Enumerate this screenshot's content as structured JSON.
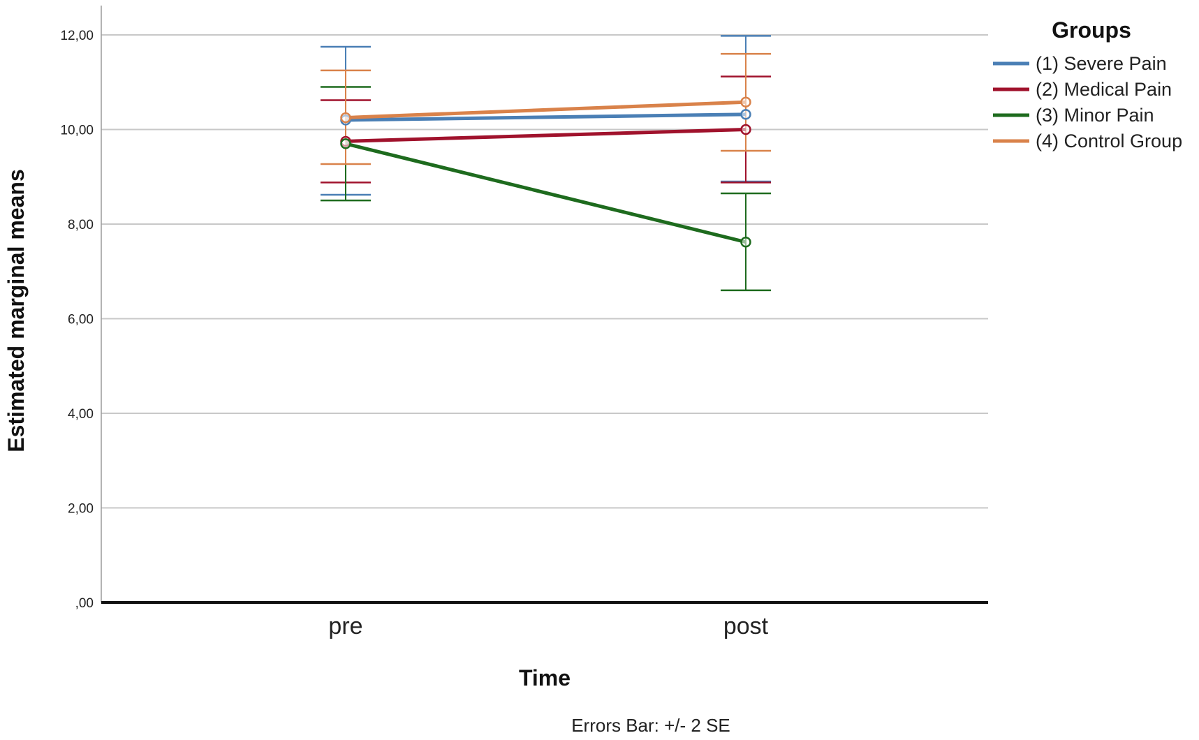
{
  "chart_data": {
    "type": "line",
    "xlabel": "Time",
    "ylabel": "Estimated marginal means",
    "categories": [
      "pre",
      "post"
    ],
    "ylim": [
      0,
      12
    ],
    "yticks": [
      {
        "value": 0,
        "label": ",00"
      },
      {
        "value": 2,
        "label": "2,00"
      },
      {
        "value": 4,
        "label": "4,00"
      },
      {
        "value": 6,
        "label": "6,00"
      },
      {
        "value": 8,
        "label": "8,00"
      },
      {
        "value": 10,
        "label": "10,00"
      },
      {
        "value": 12,
        "label": "12,00"
      }
    ],
    "grid": true,
    "legend_title": "Groups",
    "legend_position": "top-right",
    "footnote": "Errors Bar: +/- 2 SE",
    "series": [
      {
        "name": "(1) Severe Pain",
        "color": "#4a7fb5",
        "values": [
          10.2,
          10.32
        ],
        "err_low": [
          8.62,
          8.9
        ],
        "err_high": [
          11.75,
          11.98
        ]
      },
      {
        "name": "(2) Medical Pain",
        "color": "#a0122c",
        "values": [
          9.75,
          10.0
        ],
        "err_low": [
          8.88,
          8.88
        ],
        "err_high": [
          10.62,
          11.12
        ]
      },
      {
        "name": "(3) Minor Pain",
        "color": "#1e6b1e",
        "values": [
          9.7,
          7.62
        ],
        "err_low": [
          8.5,
          6.6
        ],
        "err_high": [
          10.9,
          8.65
        ]
      },
      {
        "name": "(4) Control Group",
        "color": "#d9824a",
        "values": [
          10.25,
          10.58
        ],
        "err_low": [
          9.27,
          9.55
        ],
        "err_high": [
          11.25,
          11.6
        ]
      }
    ]
  }
}
